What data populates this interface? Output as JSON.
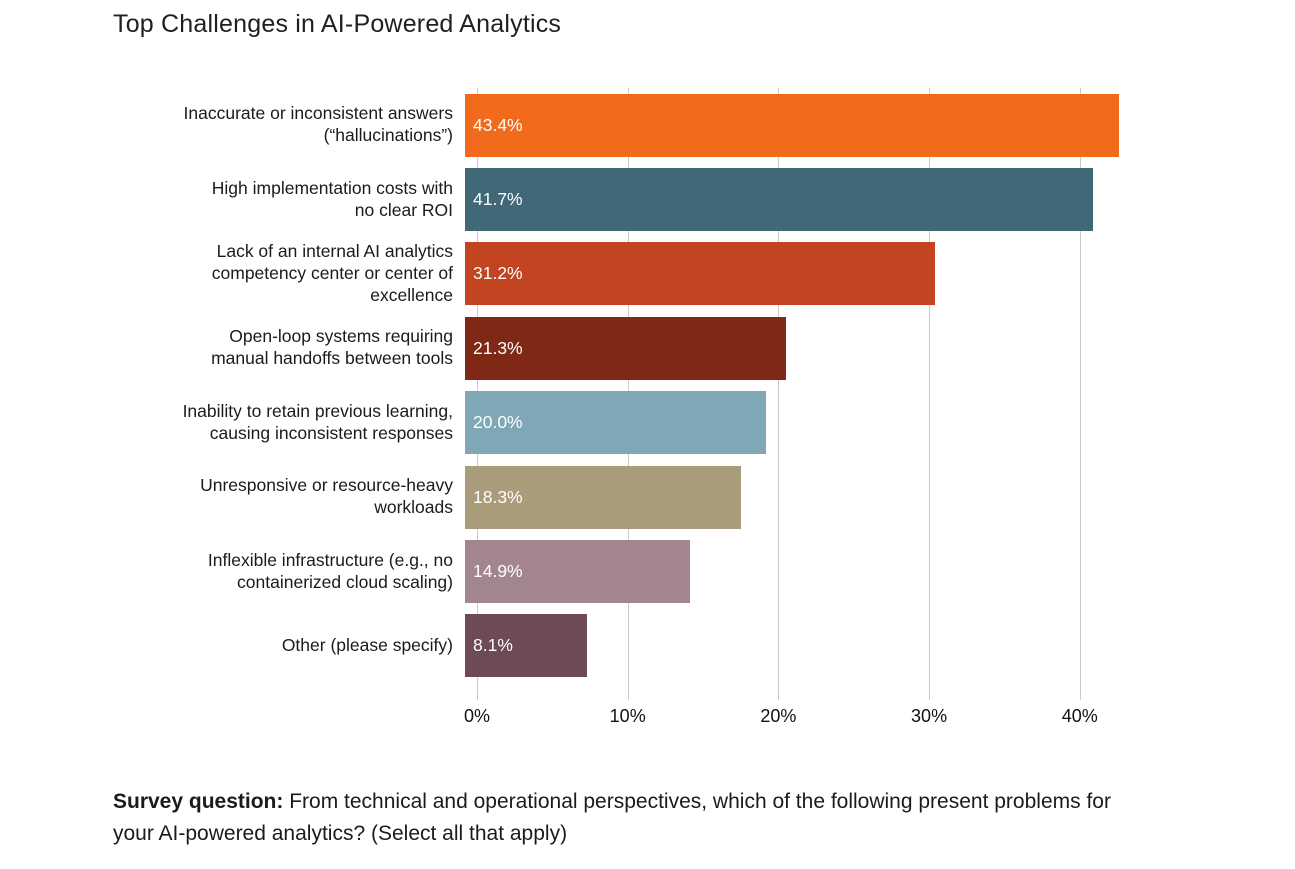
{
  "chart_data": {
    "type": "bar",
    "orientation": "horizontal",
    "title": "Top Challenges in AI-Powered Analytics",
    "categories": [
      "Inaccurate or inconsistent answers\n(“hallucinations”)",
      "High implementation costs with\nno clear ROI",
      "Lack of an internal AI analytics\ncompetency center or center of\nexcellence",
      "Open-loop systems requiring\nmanual handoffs between tools",
      "Inability to retain previous learning,\ncausing inconsistent responses",
      "Unresponsive or resource-heavy\nworkloads",
      "Inflexible infrastructure (e.g., no\ncontainerized cloud scaling)",
      "Other (please specify)"
    ],
    "values": [
      43.4,
      41.7,
      31.2,
      21.3,
      20.0,
      18.3,
      14.9,
      8.1
    ],
    "value_labels": [
      "43.4%",
      "41.7%",
      "31.2%",
      "21.3%",
      "20.0%",
      "18.3%",
      "14.9%",
      "8.1%"
    ],
    "bar_colors": [
      "#F26B1D",
      "#406876",
      "#C24420",
      "#7E2815",
      "#7FA7B6",
      "#A89C7B",
      "#A2858F",
      "#6D4A54"
    ],
    "xlabel": "",
    "ylabel": "",
    "xlim": [
      0,
      43.4
    ],
    "x_ticks": [
      {
        "value": 0,
        "label": "0%"
      },
      {
        "value": 10,
        "label": "10%"
      },
      {
        "value": 20,
        "label": "20%"
      },
      {
        "value": 30,
        "label": "30%"
      },
      {
        "value": 40,
        "label": "40%"
      }
    ],
    "grid": "vertical",
    "legend": "none",
    "value_label_color": "#ffffff",
    "gridline_color": "#cbcbcb"
  },
  "footer": {
    "bold_label": "Survey question:",
    "text": " From technical and operational perspectives, which of the following present problems for your AI-powered analytics? (Select all that apply)"
  }
}
